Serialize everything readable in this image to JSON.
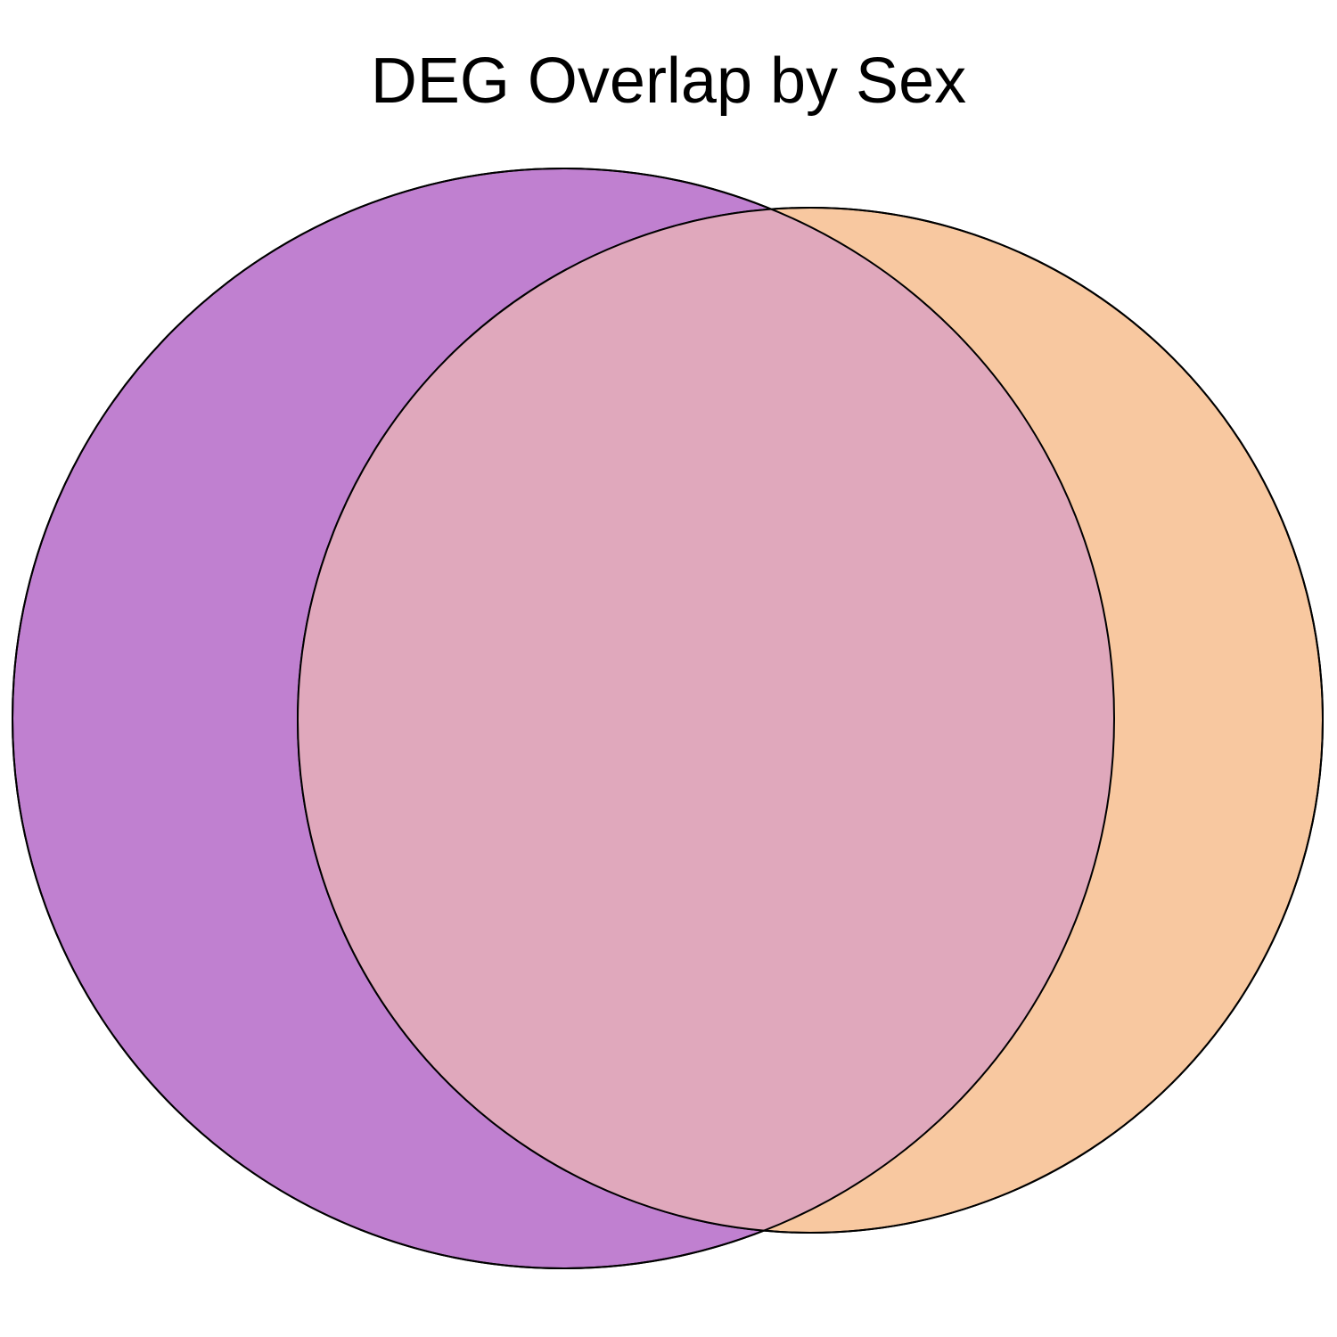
{
  "title": "DEG Overlap by Sex",
  "chart_data": {
    "type": "venn",
    "title": "DEG Overlap by Sex",
    "sets": [
      {
        "id": "set-a",
        "color": "#c080d0"
      },
      {
        "id": "set-b",
        "color": "#f8c8a0"
      }
    ],
    "intersection_color": "#e0a8bc",
    "outline_color": "#000000",
    "region_labels": []
  }
}
